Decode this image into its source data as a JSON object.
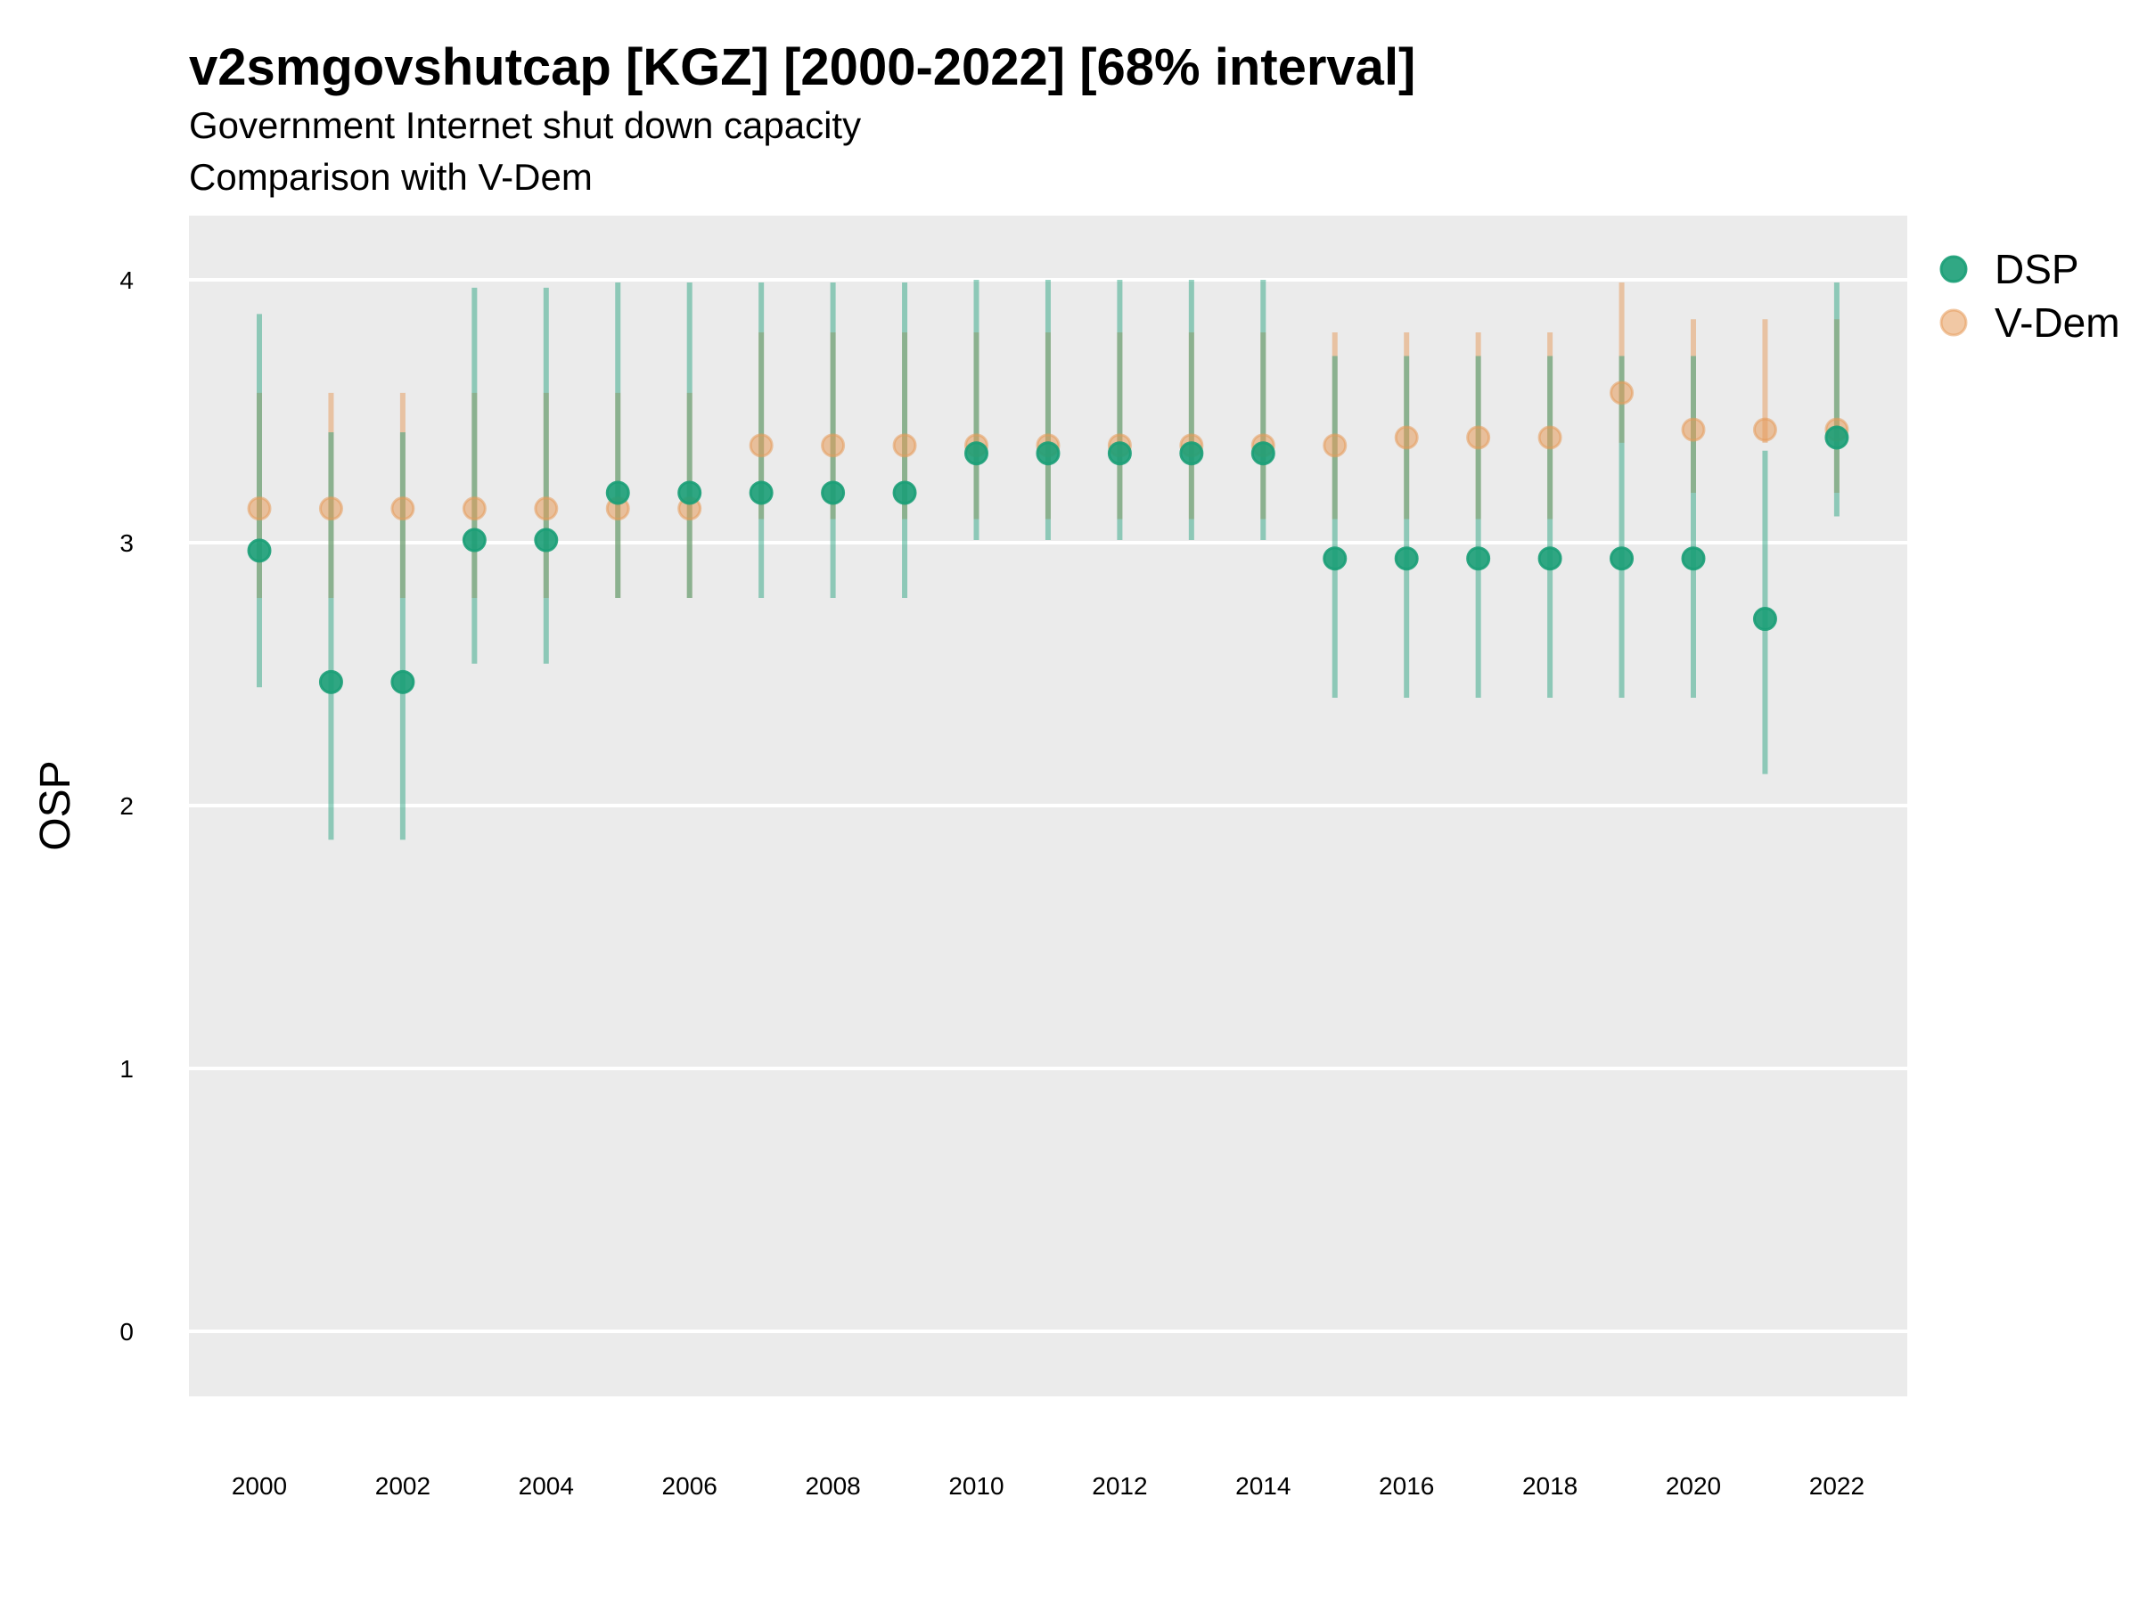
{
  "chart_data": {
    "type": "scatter",
    "title": "v2smgovshutcap [KGZ] [2000-2022] [68% interval]",
    "subtitle_lines": [
      "Government Internet shut down capacity",
      "Comparison with V-Dem"
    ],
    "xlabel": "",
    "ylabel": "OSP",
    "x_ticks": [
      2000,
      2002,
      2004,
      2006,
      2008,
      2010,
      2012,
      2014,
      2016,
      2018,
      2020,
      2022
    ],
    "y_ticks": [
      0,
      1,
      2,
      3,
      4
    ],
    "xlim": [
      1999,
      2023
    ],
    "ylim": [
      -0.25,
      4.25
    ],
    "grid": true,
    "legend_position": "right",
    "x": [
      2000,
      2001,
      2002,
      2003,
      2004,
      2005,
      2006,
      2007,
      2008,
      2009,
      2010,
      2011,
      2012,
      2013,
      2014,
      2015,
      2016,
      2017,
      2018,
      2019,
      2020,
      2021,
      2022
    ],
    "series": [
      {
        "name": "V-Dem",
        "color": "#E59A59",
        "values": [
          3.13,
          3.13,
          3.13,
          3.13,
          3.13,
          3.13,
          3.13,
          3.37,
          3.37,
          3.37,
          3.37,
          3.37,
          3.37,
          3.37,
          3.37,
          3.37,
          3.4,
          3.4,
          3.4,
          3.57,
          3.43,
          3.43,
          3.43
        ],
        "lower": [
          2.79,
          2.79,
          2.79,
          2.79,
          2.79,
          2.79,
          2.79,
          3.09,
          3.09,
          3.09,
          3.09,
          3.09,
          3.09,
          3.09,
          3.09,
          3.09,
          3.09,
          3.09,
          3.09,
          3.38,
          3.19,
          3.38,
          3.19
        ],
        "upper": [
          3.57,
          3.57,
          3.57,
          3.57,
          3.57,
          3.57,
          3.57,
          3.8,
          3.8,
          3.8,
          3.8,
          3.8,
          3.8,
          3.8,
          3.8,
          3.8,
          3.8,
          3.8,
          3.8,
          3.99,
          3.85,
          3.85,
          3.85
        ]
      },
      {
        "name": "DSP",
        "color": "#1B9E77",
        "values": [
          2.97,
          2.47,
          2.47,
          3.01,
          3.01,
          3.19,
          3.19,
          3.19,
          3.19,
          3.19,
          3.34,
          3.34,
          3.34,
          3.34,
          3.34,
          2.94,
          2.94,
          2.94,
          2.94,
          2.94,
          2.94,
          2.71,
          3.4
        ],
        "lower": [
          2.45,
          1.87,
          1.87,
          2.54,
          2.54,
          2.79,
          2.79,
          2.79,
          2.79,
          2.79,
          3.01,
          3.01,
          3.01,
          3.01,
          3.01,
          2.41,
          2.41,
          2.41,
          2.41,
          2.41,
          2.41,
          2.12,
          3.1
        ],
        "upper": [
          3.87,
          3.42,
          3.42,
          3.97,
          3.97,
          3.99,
          3.99,
          3.99,
          3.99,
          3.99,
          4.0,
          4.0,
          4.0,
          4.0,
          4.0,
          3.71,
          3.71,
          3.71,
          3.71,
          3.71,
          3.71,
          3.35,
          3.99
        ]
      }
    ]
  }
}
